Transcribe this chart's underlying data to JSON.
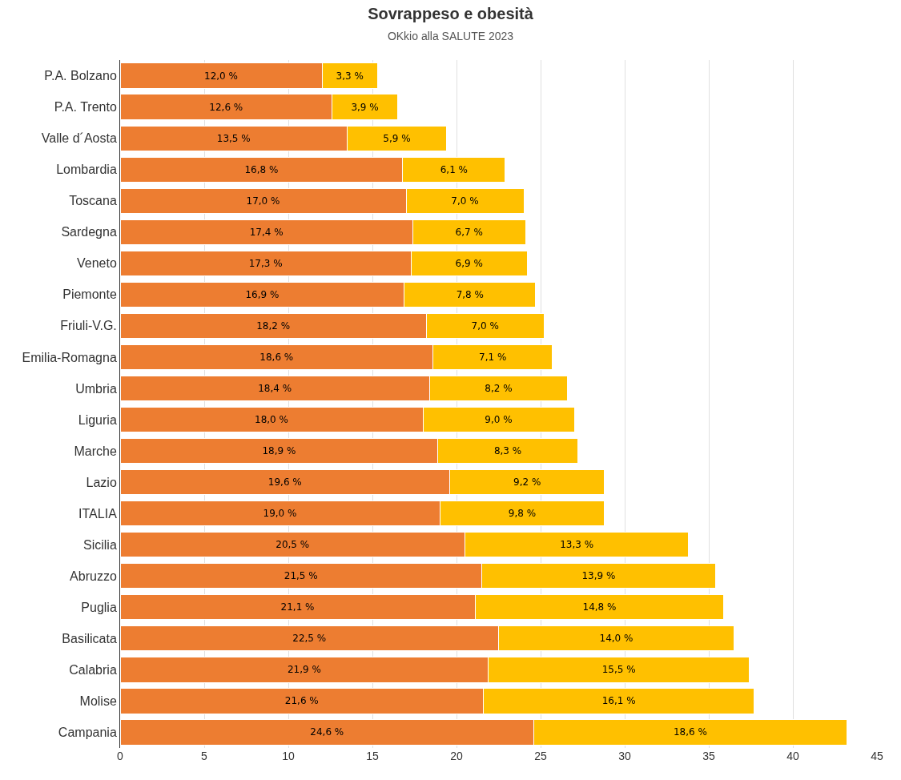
{
  "chart_data": {
    "type": "bar",
    "orientation": "horizontal",
    "stacked": true,
    "title": "Sovrappeso e obesità",
    "subtitle": "OKkio alla SALUTE 2023",
    "categories": [
      "P.A. Bolzano",
      "P.A. Trento",
      "Valle d´Aosta",
      "Lombardia",
      "Toscana",
      "Sardegna",
      "Veneto",
      "Piemonte",
      "Friuli-V.G.",
      "Emilia-Romagna",
      "Umbria",
      "Liguria",
      "Marche",
      "Lazio",
      "ITALIA",
      "Sicilia",
      "Abruzzo",
      "Puglia",
      "Basilicata",
      "Calabria",
      "Molise",
      "Campania"
    ],
    "series": [
      {
        "color": "#ed7d31",
        "values": [
          12.0,
          12.6,
          13.5,
          16.8,
          17.0,
          17.4,
          17.3,
          16.9,
          18.2,
          18.6,
          18.4,
          18.0,
          18.9,
          19.6,
          19.0,
          20.5,
          21.5,
          21.1,
          22.5,
          21.9,
          21.6,
          24.6
        ],
        "value_labels": [
          "12,0 %",
          "12,6 %",
          "13,5 %",
          "16,8 %",
          "17,0 %",
          "17,4 %",
          "17,3 %",
          "16,9 %",
          "18,2 %",
          "18,6 %",
          "18,4 %",
          "18,0 %",
          "18,9 %",
          "19,6 %",
          "19,0 %",
          "20,5 %",
          "21,5 %",
          "21,1 %",
          "22,5 %",
          "21,9 %",
          "21,6 %",
          "24,6 %"
        ]
      },
      {
        "color": "#ffc000",
        "values": [
          3.3,
          3.9,
          5.9,
          6.1,
          7.0,
          6.7,
          6.9,
          7.8,
          7.0,
          7.1,
          8.2,
          9.0,
          8.3,
          9.2,
          9.8,
          13.3,
          13.9,
          14.8,
          14.0,
          15.5,
          16.1,
          18.6
        ],
        "value_labels": [
          "3,3 %",
          "3,9 %",
          "5,9 %",
          "6,1 %",
          "7,0 %",
          "6,7 %",
          "6,9 %",
          "7,8 %",
          "7,0 %",
          "7,1 %",
          "8,2 %",
          "9,0 %",
          "8,3 %",
          "9,2 %",
          "9,8 %",
          "13,3 %",
          "13,9 %",
          "14,8 %",
          "14,0 %",
          "15,5 %",
          "16,1 %",
          "18,6 %"
        ]
      }
    ],
    "xlim": [
      0,
      45
    ],
    "xticks": [
      0,
      5,
      10,
      15,
      20,
      25,
      30,
      35,
      40,
      45
    ],
    "grid": "x"
  }
}
